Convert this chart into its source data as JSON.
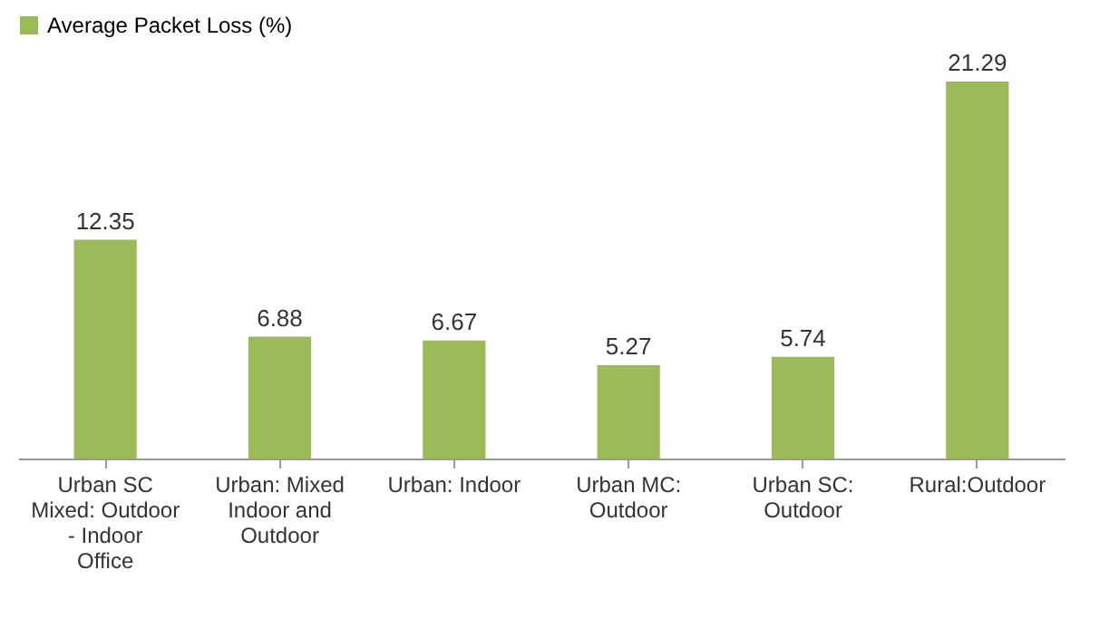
{
  "chart_data": {
    "type": "bar",
    "categories": [
      "Urban SC Mixed: Outdoor - Indoor Office",
      "Urban: Mixed Indoor and Outdoor",
      "Urban: Indoor",
      "Urban MC: Outdoor",
      "Urban SC: Outdoor",
      "Rural:Outdoor"
    ],
    "series": [
      {
        "name": "Average Packet Loss (%)",
        "color": "#9bbb59",
        "values": [
          12.35,
          6.88,
          6.67,
          5.27,
          5.74,
          21.29
        ]
      }
    ],
    "data_labels": true,
    "legend": "top",
    "grid": false
  }
}
